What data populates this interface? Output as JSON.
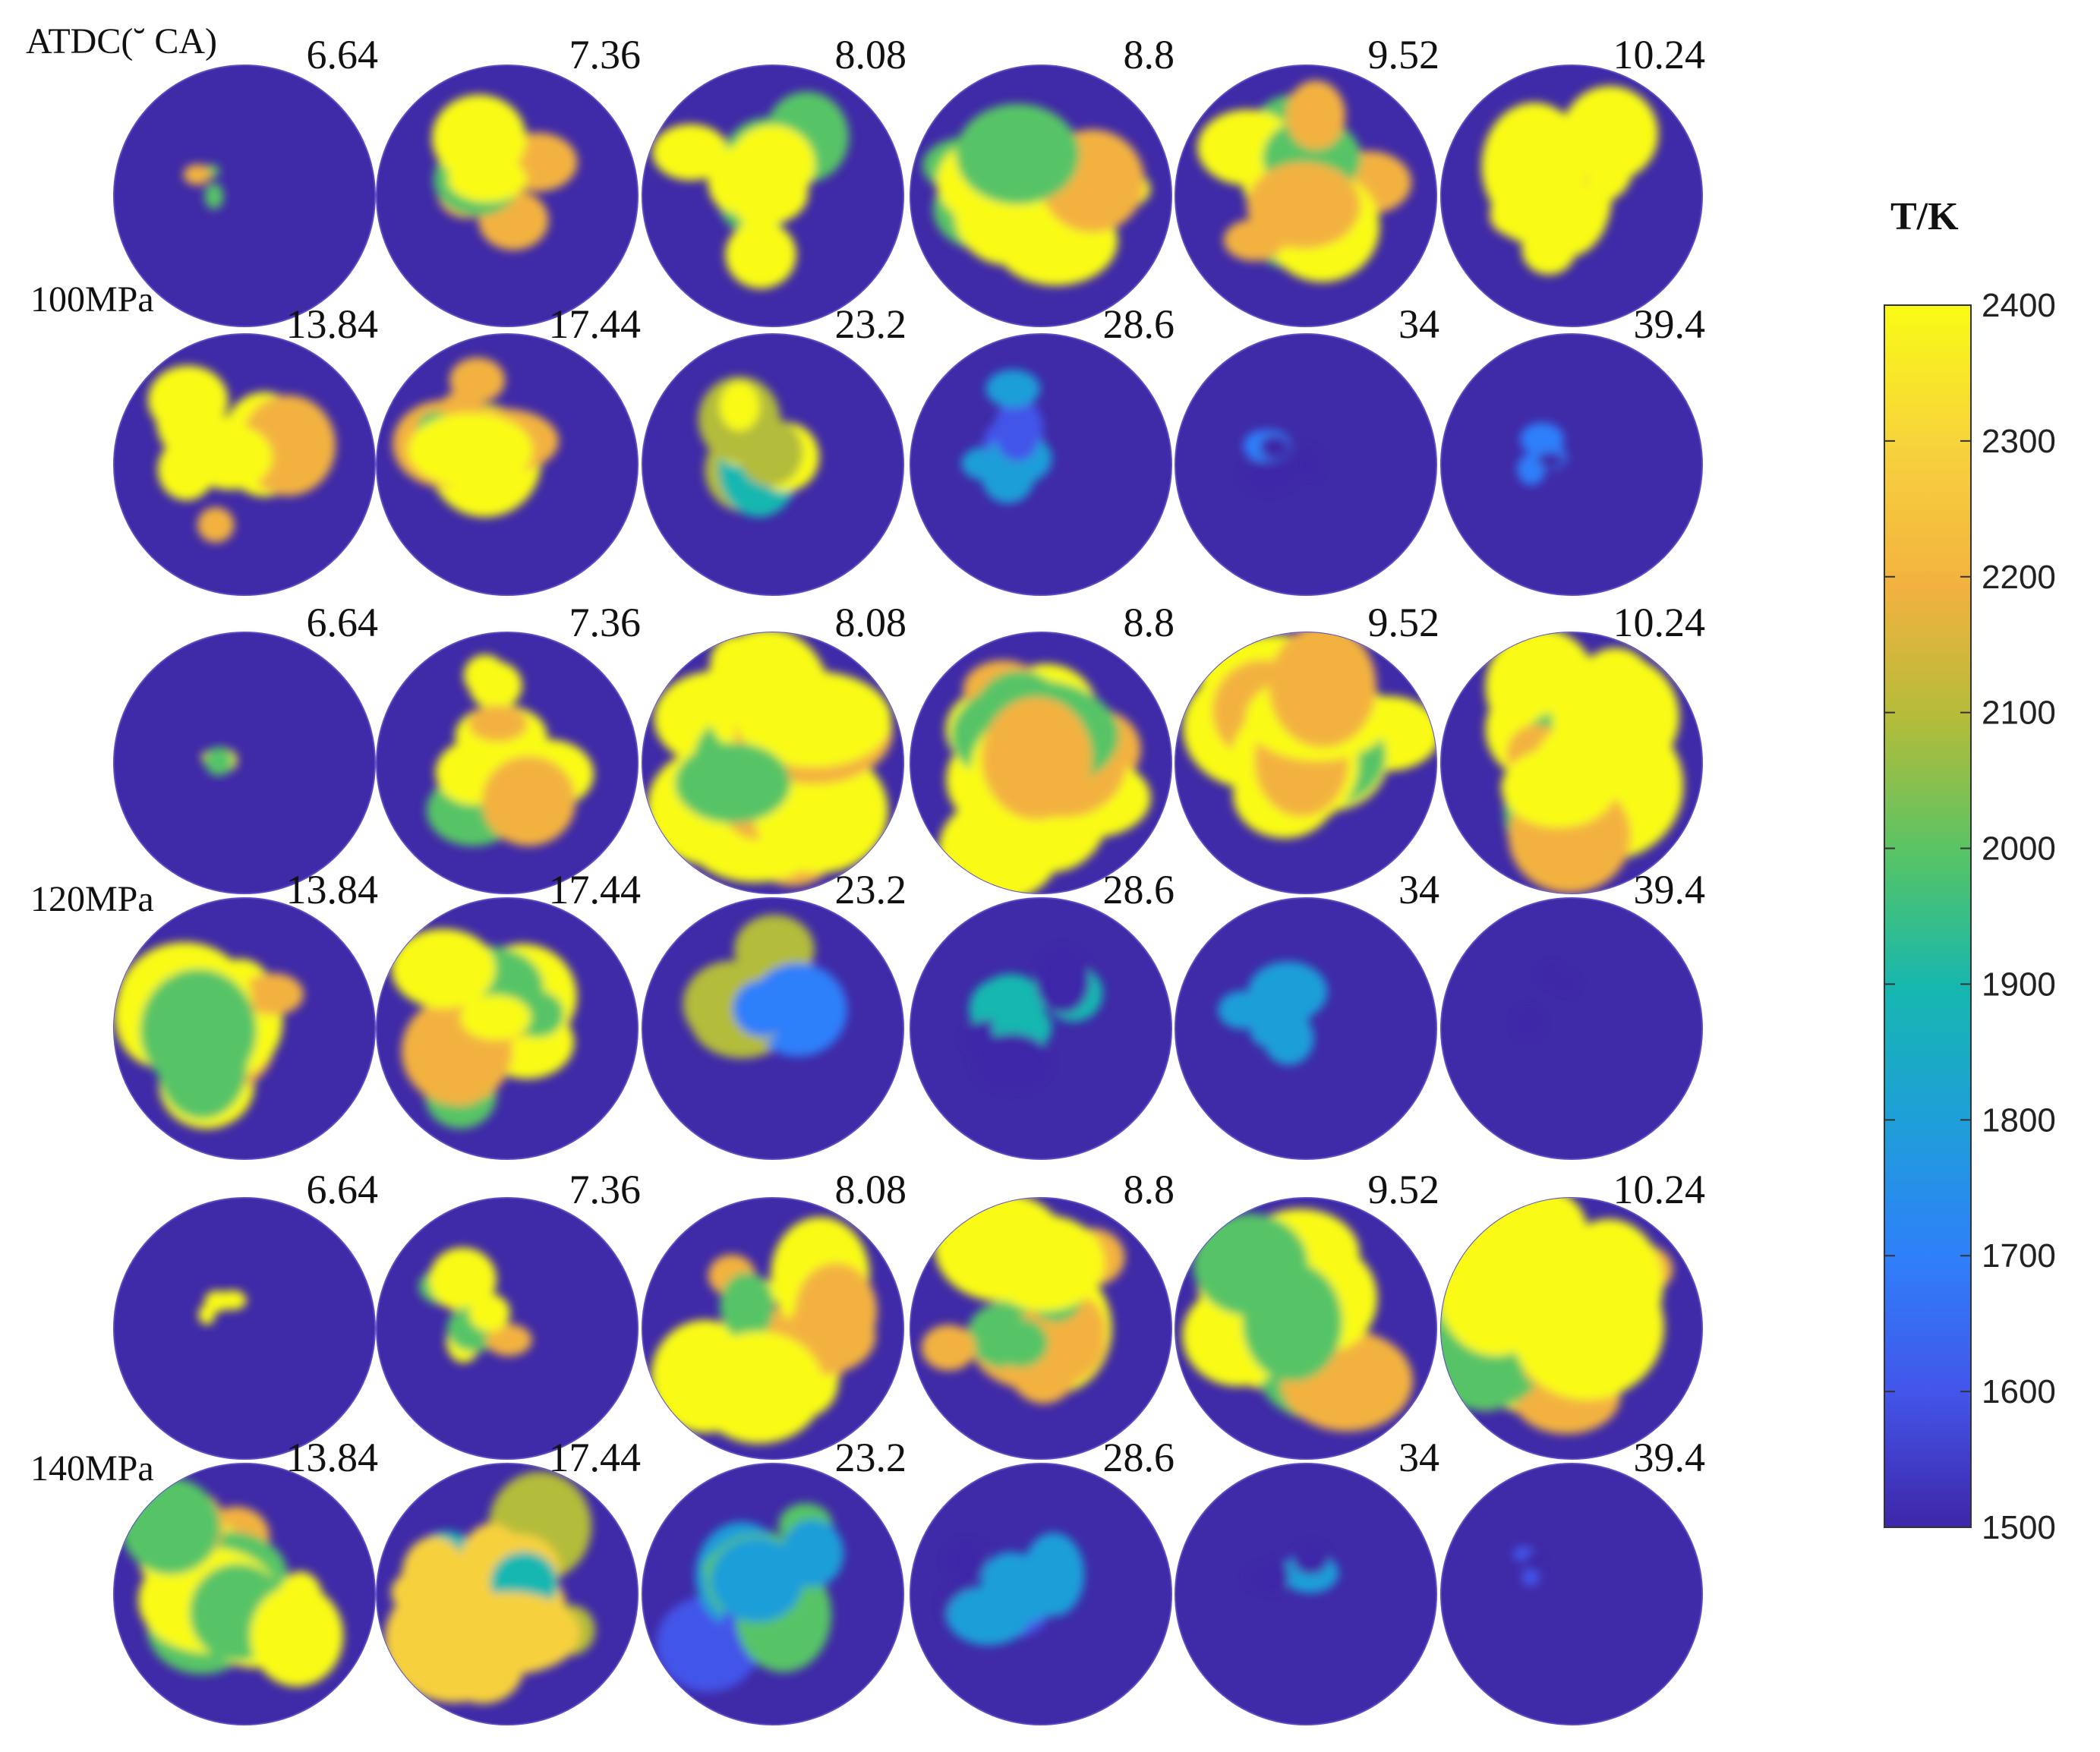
{
  "chart_data": {
    "type": "heatmap",
    "title": "",
    "axis_label": "ATDC(˘ CA)",
    "colorbar": {
      "title": "T/K",
      "min": 1500,
      "max": 2400,
      "ticks": [
        "2400",
        "2300",
        "2200",
        "2100",
        "2000",
        "1900",
        "1800",
        "1700",
        "1600",
        "1500"
      ],
      "colormap": "parula",
      "colors": [
        "#3e26a8",
        "#4355e9",
        "#2f7ffa",
        "#1f9ed9",
        "#16b7b0",
        "#56c466",
        "#b3bc3a",
        "#f3b23f",
        "#f7d13e",
        "#f9fb15"
      ]
    },
    "background_color": "#3f2aa7",
    "crank_angles": [
      "6.64",
      "7.36",
      "8.08",
      "8.8",
      "9.52",
      "10.24",
      "13.84",
      "17.44",
      "23.2",
      "28.6",
      "34",
      "39.4"
    ],
    "groups": [
      {
        "label": "100MPa",
        "frames": [
          {
            "ca": "6.64",
            "peak_T": 2400,
            "hot_area_frac": 0.01
          },
          {
            "ca": "7.36",
            "peak_T": 2400,
            "hot_area_frac": 0.2
          },
          {
            "ca": "8.08",
            "peak_T": 2400,
            "hot_area_frac": 0.45
          },
          {
            "ca": "8.8",
            "peak_T": 2400,
            "hot_area_frac": 0.5
          },
          {
            "ca": "9.52",
            "peak_T": 2400,
            "hot_area_frac": 0.48
          },
          {
            "ca": "10.24",
            "peak_T": 2400,
            "hot_area_frac": 0.48
          },
          {
            "ca": "13.84",
            "peak_T": 2400,
            "hot_area_frac": 0.4
          },
          {
            "ca": "17.44",
            "peak_T": 2400,
            "hot_area_frac": 0.38
          },
          {
            "ca": "23.2",
            "peak_T": 2350,
            "hot_area_frac": 0.3
          },
          {
            "ca": "28.6",
            "peak_T": 1800,
            "hot_area_frac": 0.2
          },
          {
            "ca": "34",
            "peak_T": 1700,
            "hot_area_frac": 0.1
          },
          {
            "ca": "39.4",
            "peak_T": 1650,
            "hot_area_frac": 0.03
          }
        ]
      },
      {
        "label": "120MPa",
        "frames": [
          {
            "ca": "6.64",
            "peak_T": 2400,
            "hot_area_frac": 0.01
          },
          {
            "ca": "7.36",
            "peak_T": 2400,
            "hot_area_frac": 0.35
          },
          {
            "ca": "8.08",
            "peak_T": 2400,
            "hot_area_frac": 0.75
          },
          {
            "ca": "8.8",
            "peak_T": 2400,
            "hot_area_frac": 0.75
          },
          {
            "ca": "9.52",
            "peak_T": 2400,
            "hot_area_frac": 0.7
          },
          {
            "ca": "10.24",
            "peak_T": 2400,
            "hot_area_frac": 0.7
          },
          {
            "ca": "13.84",
            "peak_T": 2400,
            "hot_area_frac": 0.6
          },
          {
            "ca": "17.44",
            "peak_T": 2400,
            "hot_area_frac": 0.55
          },
          {
            "ca": "23.2",
            "peak_T": 2100,
            "hot_area_frac": 0.4
          },
          {
            "ca": "28.6",
            "peak_T": 1850,
            "hot_area_frac": 0.25
          },
          {
            "ca": "34",
            "peak_T": 1750,
            "hot_area_frac": 0.15
          },
          {
            "ca": "39.4",
            "peak_T": 1650,
            "hot_area_frac": 0.02
          }
        ]
      },
      {
        "label": "140MPa",
        "frames": [
          {
            "ca": "6.64",
            "peak_T": 2400,
            "hot_area_frac": 0.005
          },
          {
            "ca": "7.36",
            "peak_T": 2400,
            "hot_area_frac": 0.15
          },
          {
            "ca": "8.08",
            "peak_T": 2400,
            "hot_area_frac": 0.5
          },
          {
            "ca": "8.8",
            "peak_T": 2400,
            "hot_area_frac": 0.6
          },
          {
            "ca": "9.52",
            "peak_T": 2400,
            "hot_area_frac": 0.7
          },
          {
            "ca": "10.24",
            "peak_T": 2400,
            "hot_area_frac": 0.7
          },
          {
            "ca": "13.84",
            "peak_T": 2400,
            "hot_area_frac": 0.6
          },
          {
            "ca": "17.44",
            "peak_T": 2300,
            "hot_area_frac": 0.6
          },
          {
            "ca": "23.2",
            "peak_T": 2000,
            "hot_area_frac": 0.5
          },
          {
            "ca": "28.6",
            "peak_T": 1800,
            "hot_area_frac": 0.25
          },
          {
            "ca": "34",
            "peak_T": 1750,
            "hot_area_frac": 0.05
          },
          {
            "ca": "39.4",
            "peak_T": 1550,
            "hot_area_frac": 0.005
          }
        ]
      }
    ]
  }
}
